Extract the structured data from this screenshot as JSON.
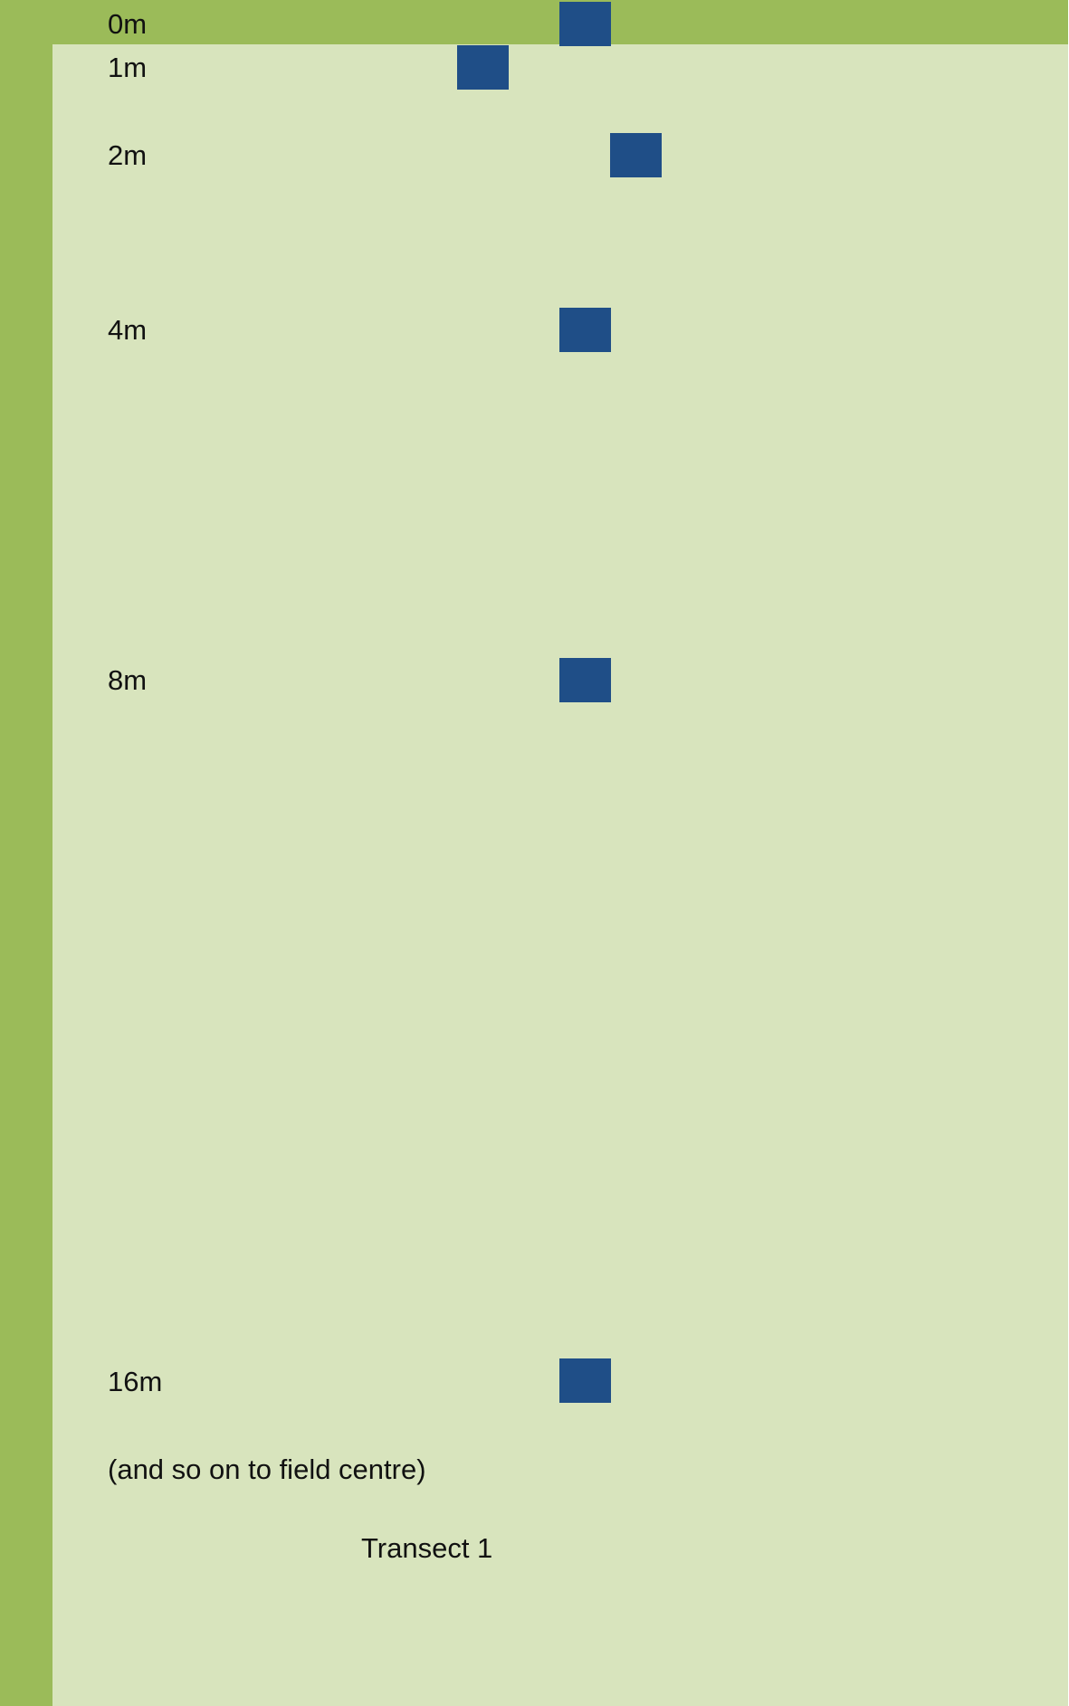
{
  "colors": {
    "field_edge": "#9bbb59",
    "field_interior": "#d8e4bd",
    "quadrat": "#1f4e87",
    "text": "#111111"
  },
  "markers": [
    {
      "label": "0m",
      "distance_m": 0,
      "offset": "centre"
    },
    {
      "label": "1m",
      "distance_m": 1,
      "offset": "left"
    },
    {
      "label": "2m",
      "distance_m": 2,
      "offset": "right"
    },
    {
      "label": "4m",
      "distance_m": 4,
      "offset": "centre"
    },
    {
      "label": "8m",
      "distance_m": 8,
      "offset": "centre"
    },
    {
      "label": "16m",
      "distance_m": 16,
      "offset": "centre"
    }
  ],
  "note": "(and so on to field centre)",
  "caption": "Transect 1"
}
